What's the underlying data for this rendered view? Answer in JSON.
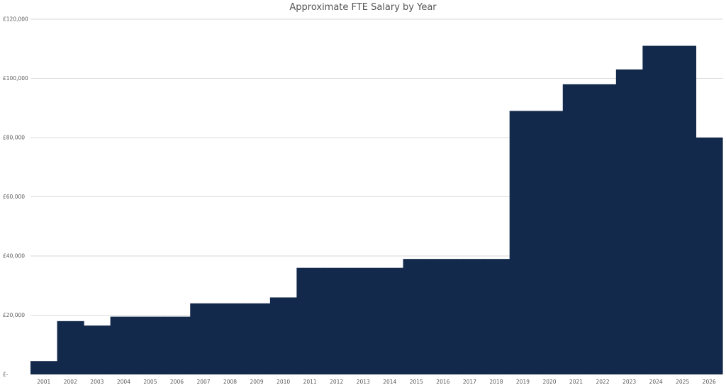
{
  "chart_data": {
    "type": "bar",
    "title": "Approximate FTE Salary by Year",
    "xlabel": "",
    "ylabel": "",
    "categories": [
      "2001",
      "2002",
      "2003",
      "2004",
      "2005",
      "2006",
      "2007",
      "2008",
      "2009",
      "2010",
      "2011",
      "2012",
      "2013",
      "2014",
      "2015",
      "2016",
      "2017",
      "2018",
      "2019",
      "2020",
      "2021",
      "2022",
      "2023",
      "2024",
      "2025",
      "2026"
    ],
    "values": [
      4500,
      18000,
      16500,
      19500,
      19500,
      19500,
      24000,
      24000,
      24000,
      26000,
      36000,
      36000,
      36000,
      36000,
      39000,
      39000,
      39000,
      39000,
      89000,
      89000,
      98000,
      98000,
      103000,
      111000,
      111000,
      80000
    ],
    "ylim": [
      0,
      120000
    ],
    "y_ticks": [
      0,
      20000,
      40000,
      60000,
      80000,
      100000,
      120000
    ],
    "y_tick_labels": [
      "£-",
      "£20,000",
      "£40,000",
      "£60,000",
      "£80,000",
      "£100,000",
      "£120,000"
    ],
    "grid": true,
    "legend": "none",
    "bar_gap": 0,
    "colors": {
      "bar": "#13294b",
      "grid": "#d9d9d9",
      "text": "#595959"
    }
  }
}
